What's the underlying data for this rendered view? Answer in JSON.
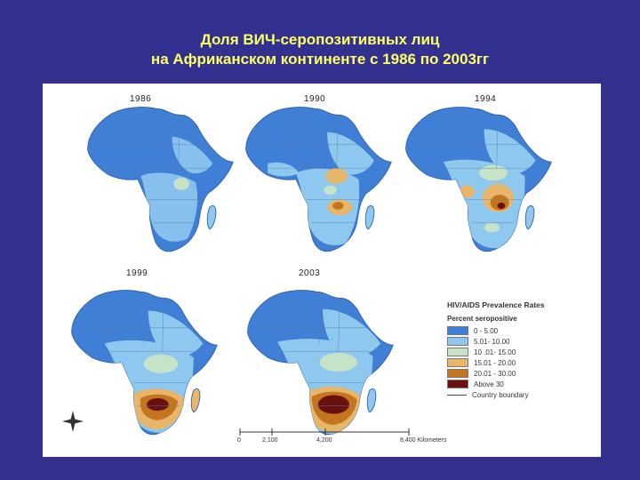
{
  "slide": {
    "title_line1": "Доля ВИЧ-серопозитивных лиц",
    "title_line2": "на Африканском континенте с 1986 по 2003гг"
  },
  "maps": [
    {
      "year": "1986"
    },
    {
      "year": "1990"
    },
    {
      "year": "1994"
    },
    {
      "year": "1999"
    },
    {
      "year": "2003"
    }
  ],
  "legend": {
    "title": "HIV/AIDS Prevalence Rates",
    "subtitle": "Percent seropositive",
    "items": [
      {
        "label": "0 - 5.00",
        "color": "#3f7fd6"
      },
      {
        "label": "5.01- 10.00",
        "color": "#8fc8ee"
      },
      {
        "label": "10 .01- 15.00",
        "color": "#c6e3c8"
      },
      {
        "label": "15.01 - 20.00",
        "color": "#e8b66a"
      },
      {
        "label": "20.01 - 30.00",
        "color": "#c4761f"
      },
      {
        "label": "Above 30",
        "color": "#6b1010"
      }
    ],
    "boundary_label": "Country boundary"
  },
  "scale": {
    "labels": [
      "0",
      "2,100",
      "4,200",
      "8,400 Kilometers"
    ]
  }
}
